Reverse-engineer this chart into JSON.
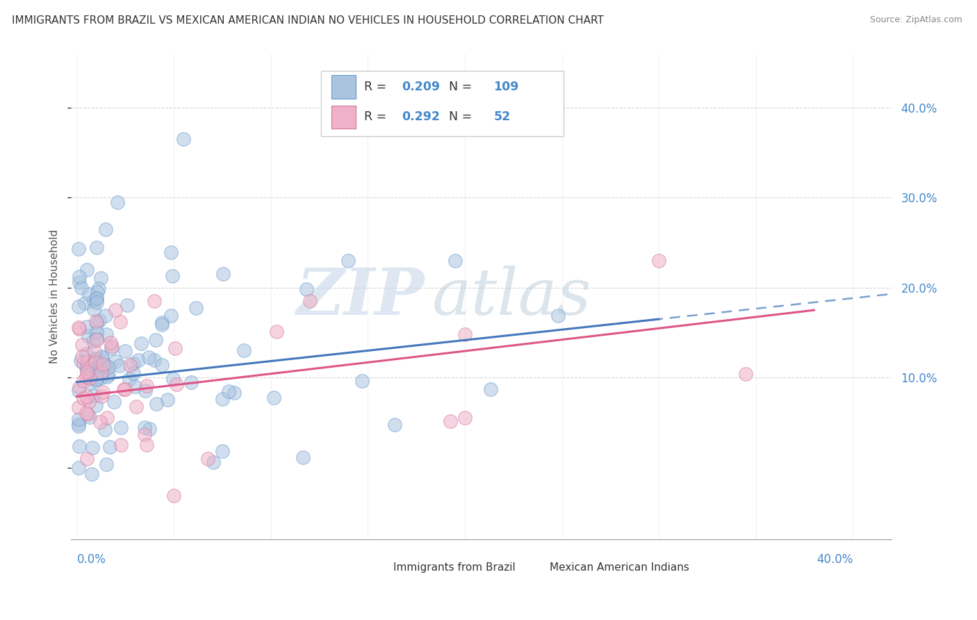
{
  "title": "IMMIGRANTS FROM BRAZIL VS MEXICAN AMERICAN INDIAN NO VEHICLES IN HOUSEHOLD CORRELATION CHART",
  "source": "Source: ZipAtlas.com",
  "ylabel": "No Vehicles in Household",
  "series1_name": "Immigrants from Brazil",
  "series1_R": "0.209",
  "series1_N": "109",
  "series1_color": "#aac4e0",
  "series1_edge_color": "#6699cc",
  "series1_line_color": "#4477bb",
  "series2_name": "Mexican American Indians",
  "series2_R": "0.292",
  "series2_N": "52",
  "series2_color": "#f0b0c8",
  "series2_edge_color": "#cc7799",
  "series2_line_color": "#dd5588",
  "watermark_zip": "ZIP",
  "watermark_atlas": "atlas",
  "watermark_color": "#ccddee",
  "watermark_atlas_color": "#bbccdd",
  "background_color": "#ffffff",
  "grid_color": "#cccccc",
  "right_tick_color": "#4488cc",
  "xlim": [
    -0.003,
    0.42
  ],
  "ylim": [
    -0.08,
    0.46
  ],
  "y_ticks": [
    0.1,
    0.2,
    0.3,
    0.4
  ],
  "y_tick_labels": [
    "10.0%",
    "20.0%",
    "30.0%",
    "40.0%"
  ],
  "x_tick_positions": [
    0.0,
    0.05,
    0.1,
    0.15,
    0.2,
    0.25,
    0.3,
    0.35,
    0.4
  ],
  "legend_text_color": "#333333",
  "legend_value_color": "#4488cc"
}
